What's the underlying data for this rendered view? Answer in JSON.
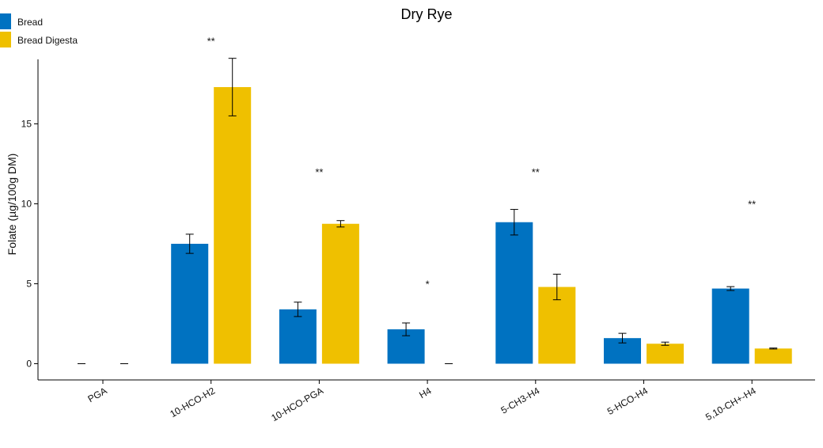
{
  "chart_data": {
    "type": "bar",
    "title": "Dry Rye",
    "xlabel": "",
    "ylabel": "Folate (µg/100g DM)",
    "ylim": [
      -1,
      19.2
    ],
    "yticks": [
      0,
      5,
      10,
      15
    ],
    "legend_position": "top-left",
    "grid": false,
    "categories": [
      "PGA",
      "10-HCO-H2",
      "10-HCO-PGA",
      "H4",
      "5-CH3-H4",
      "5-HCO-H4",
      "5,10-CH+-H4"
    ],
    "series": [
      {
        "name": "Bread",
        "color": "#0072C1",
        "values": [
          0,
          7.5,
          3.4,
          2.15,
          8.85,
          1.6,
          4.7
        ],
        "errors": [
          0,
          0.6,
          0.45,
          0.4,
          0.8,
          0.3,
          0.12
        ]
      },
      {
        "name": "Bread Digesta",
        "color": "#EFC000",
        "values": [
          0,
          17.3,
          8.75,
          0,
          4.8,
          1.25,
          0.95
        ],
        "errors": [
          0,
          1.8,
          0.2,
          0,
          0.8,
          0.1,
          0.03
        ]
      }
    ],
    "annotations": [
      {
        "category": "10-HCO-H2",
        "text": "**",
        "y": 20.2
      },
      {
        "category": "10-HCO-PGA",
        "text": "**",
        "y": 12
      },
      {
        "category": "H4",
        "text": "*",
        "y": 5
      },
      {
        "category": "5-CH3-H4",
        "text": "**",
        "y": 12
      },
      {
        "category": "5,10-CH+-H4",
        "text": "**",
        "y": 10
      }
    ]
  }
}
